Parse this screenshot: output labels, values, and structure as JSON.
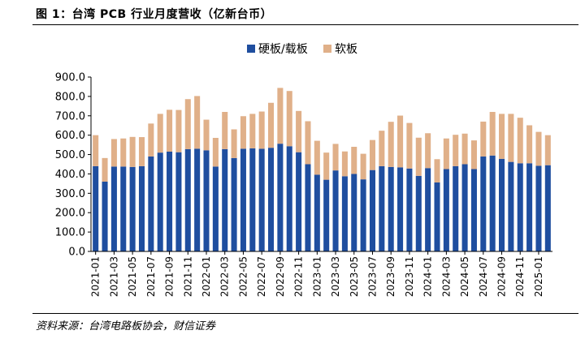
{
  "header": {
    "title": "图 1：台湾 PCB 行业月度营收（亿新台币）"
  },
  "footer": {
    "source": "资料来源：台湾电路板协会，财信证券"
  },
  "chart_data": {
    "type": "bar",
    "stacked": true,
    "title": "",
    "xlabel": "",
    "ylabel": "",
    "ylim": [
      0,
      900
    ],
    "yticks": [
      "0.0",
      "100.0",
      "200.0",
      "300.0",
      "400.0",
      "500.0",
      "600.0",
      "700.0",
      "800.0",
      "900.0"
    ],
    "grid": false,
    "legend_position": "top",
    "colors": {
      "hard": "#1f4e9f",
      "soft": "#e0b089"
    },
    "categories": [
      "2021-01",
      "2021-02",
      "2021-03",
      "2021-04",
      "2021-05",
      "2021-06",
      "2021-07",
      "2021-08",
      "2021-09",
      "2021-10",
      "2021-11",
      "2021-12",
      "2022-01",
      "2022-02",
      "2022-03",
      "2022-04",
      "2022-05",
      "2022-06",
      "2022-07",
      "2022-08",
      "2022-09",
      "2022-10",
      "2022-11",
      "2022-12",
      "2023-01",
      "2023-02",
      "2023-03",
      "2023-04",
      "2023-05",
      "2023-06",
      "2023-07",
      "2023-08",
      "2023-09",
      "2023-10",
      "2023-11",
      "2023-12",
      "2024-01",
      "2024-02",
      "2024-03",
      "2024-04",
      "2024-05",
      "2024-06",
      "2024-07",
      "2024-08",
      "2024-09",
      "2024-10",
      "2024-11",
      "2024-12",
      "2025-01",
      "2025-02"
    ],
    "x_tick_labels": [
      "2021-01",
      "2021-03",
      "2021-05",
      "2021-07",
      "2021-09",
      "2021-11",
      "2022-01",
      "2022-03",
      "2022-05",
      "2022-07",
      "2022-09",
      "2022-11",
      "2023-01",
      "2023-03",
      "2023-05",
      "2023-07",
      "2023-09",
      "2023-11",
      "2024-01",
      "2024-03",
      "2024-05",
      "2024-07",
      "2024-09",
      "2024-11",
      "2025-01"
    ],
    "series": [
      {
        "name": "硬板/载板",
        "values": [
          440,
          360,
          438,
          438,
          436,
          440,
          490,
          510,
          515,
          512,
          528,
          530,
          522,
          438,
          528,
          482,
          530,
          532,
          530,
          535,
          556,
          543,
          512,
          450,
          396,
          370,
          418,
          388,
          400,
          372,
          420,
          440,
          436,
          434,
          428,
          390,
          430,
          356,
          425,
          440,
          450,
          425,
          490,
          495,
          478,
          462,
          455,
          455,
          442,
          445
        ]
      },
      {
        "name": "软板",
        "values": [
          160,
          122,
          142,
          145,
          155,
          150,
          170,
          200,
          216,
          218,
          258,
          272,
          158,
          148,
          192,
          148,
          168,
          178,
          192,
          232,
          288,
          285,
          213,
          222,
          175,
          140,
          137,
          128,
          140,
          132,
          155,
          183,
          233,
          267,
          235,
          197,
          180,
          120,
          158,
          162,
          158,
          148,
          180,
          225,
          232,
          248,
          235,
          196,
          175,
          155
        ]
      }
    ]
  }
}
